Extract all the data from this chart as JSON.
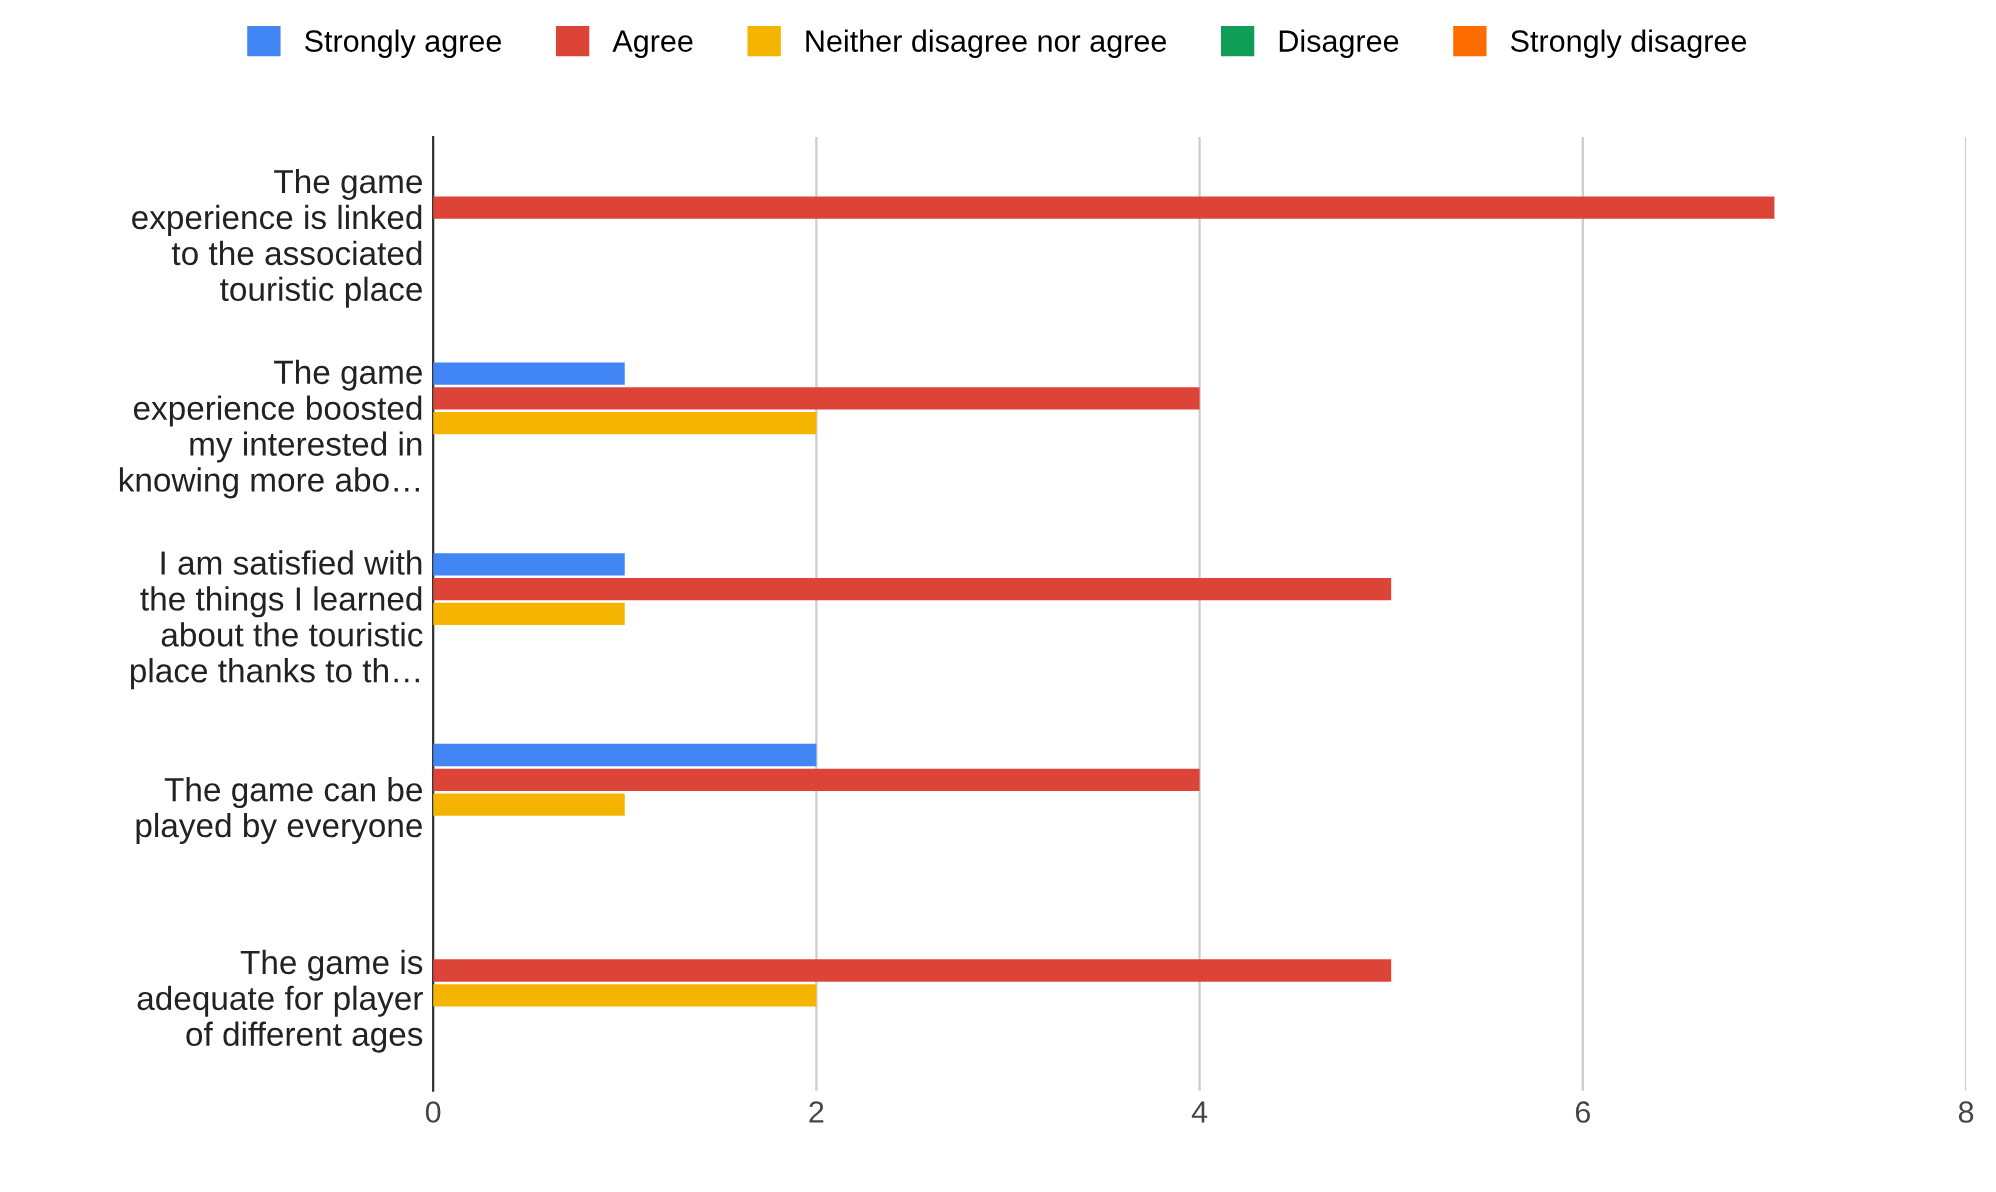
{
  "chart_data": {
    "type": "bar",
    "orientation": "horizontal",
    "categories": [
      "The game\nexperience is linked\nto the associated\ntouristic place",
      "The game\nexperience boosted\nmy interested in\nknowing more abo…",
      "I am satisfied with\nthe things I learned\nabout the touristic\nplace thanks to th…",
      "The game can be\nplayed by everyone",
      "The game is\nadequate for player\nof different ages"
    ],
    "series": [
      {
        "name": "Strongly agree",
        "color": "#4285f4",
        "values": [
          0,
          1,
          1,
          2,
          0
        ]
      },
      {
        "name": "Agree",
        "color": "#db4437",
        "values": [
          7,
          4,
          5,
          4,
          5
        ]
      },
      {
        "name": "Neither disagree nor agree",
        "color": "#f4b400",
        "values": [
          0,
          2,
          1,
          1,
          2
        ]
      },
      {
        "name": "Disagree",
        "color": "#0f9d58",
        "values": [
          0,
          0,
          0,
          0,
          0
        ]
      },
      {
        "name": "Strongly disagree",
        "color": "#ff6d01",
        "values": [
          0,
          0,
          0,
          0,
          0
        ]
      }
    ],
    "xlim": [
      0,
      8
    ],
    "xticks": [
      0,
      2,
      4,
      6,
      8
    ],
    "grid": "x",
    "legend": "top"
  }
}
